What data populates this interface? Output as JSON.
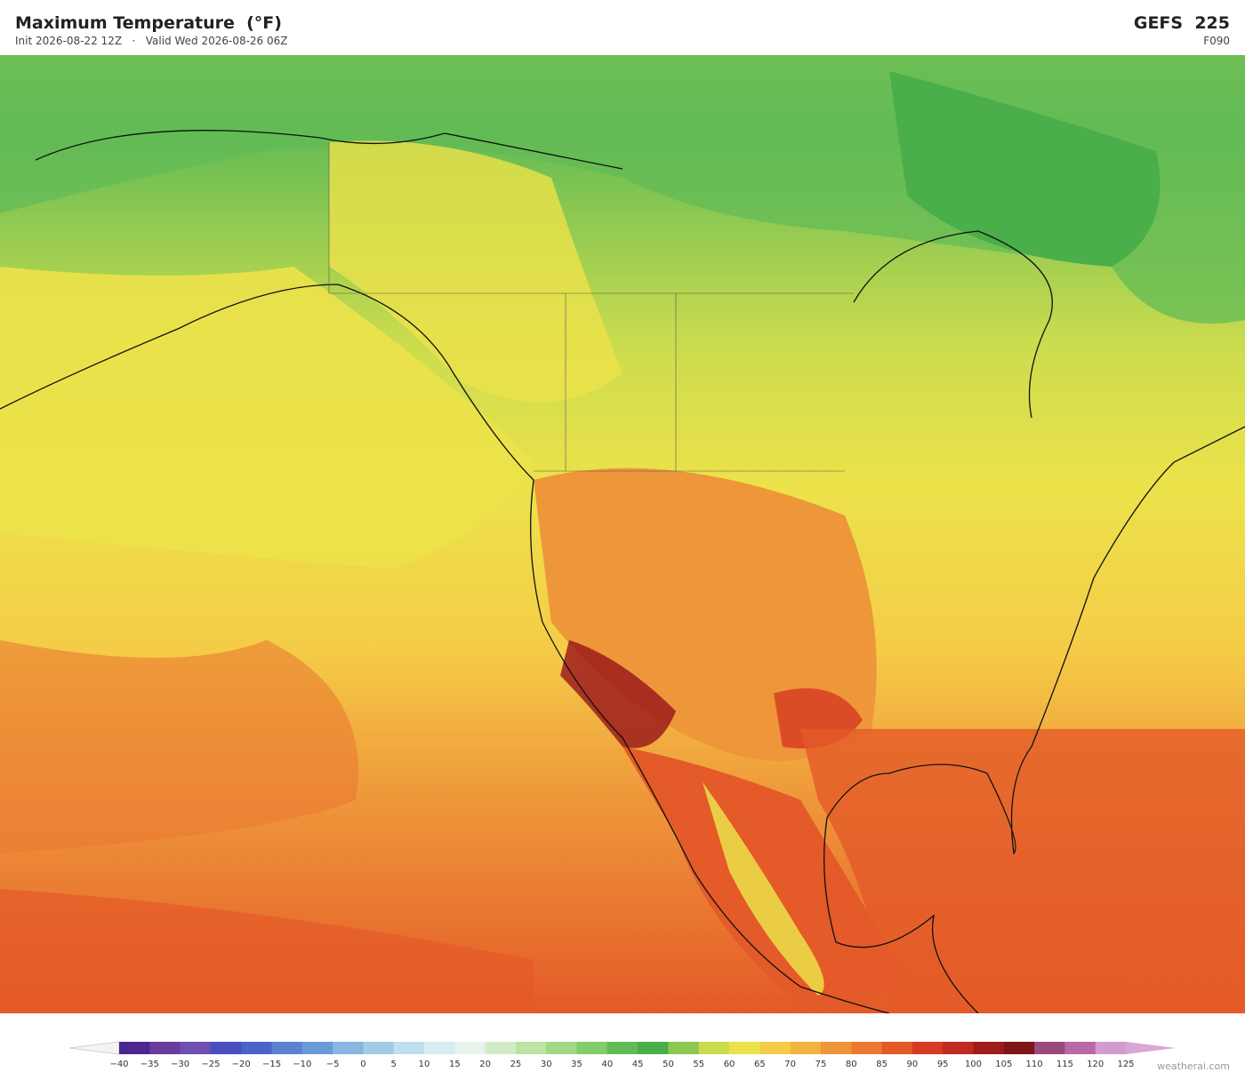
{
  "header": {
    "title": "Maximum Temperature  (°F)",
    "subtitle": "Init 2026-08-22 12Z   ·   Valid Wed 2026-08-26 06Z",
    "model": "GEFS  225",
    "forecast_hour": "F090"
  },
  "colorbar": {
    "labels": [
      "−40",
      "−35",
      "−30",
      "−25",
      "−20",
      "−15",
      "−10",
      "−5",
      "0",
      "5",
      "10",
      "15",
      "20",
      "25",
      "30",
      "35",
      "40",
      "45",
      "50",
      "55",
      "60",
      "65",
      "70",
      "75",
      "80",
      "85",
      "90",
      "95",
      "100",
      "105",
      "110",
      "115",
      "120",
      "125"
    ],
    "colors": [
      "#4b2590",
      "#6a3d9a",
      "#6f4fb0",
      "#4a4fc0",
      "#4a64c8",
      "#5a82d0",
      "#6c9ad6",
      "#88b6e0",
      "#a2cbe8",
      "#bfe0ef",
      "#d8ecf2",
      "#e8f4ec",
      "#d2ecc8",
      "#bde3a2",
      "#a3d884",
      "#84cc6a",
      "#63bb55",
      "#4aae4a",
      "#8cc850",
      "#cbdc4e",
      "#ece24a",
      "#f5cc47",
      "#f3b43f",
      "#ee963a",
      "#ea7a32",
      "#e45a28",
      "#d63a22",
      "#bf2a22",
      "#9e1c1c",
      "#7e1518",
      "#9c4a7c",
      "#b86aa8",
      "#d39ccf"
    ],
    "under_color": "#f4f4f4",
    "over_color": "#dba6d6"
  },
  "footer": {
    "credit": "weatherai.com"
  }
}
